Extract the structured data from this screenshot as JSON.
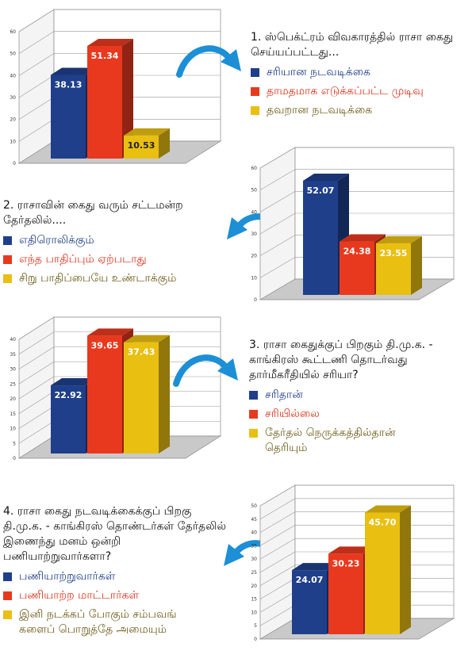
{
  "colors": {
    "blue": "#1f3f8a",
    "red": "#e8391e",
    "yellow": "#e9bf12",
    "blue_text": "#1c3c86",
    "red_text": "#d9321a",
    "yellow_text": "#6b5a17",
    "arrow": "#1c8fd6"
  },
  "questions": [
    {
      "title": "1. ஸ்பெக்ட்ரம் விவகாரத்தில் ராசா கைது செய்யப்பட்டது...",
      "options": [
        "சரியான நடவடிக்கை",
        "தாமதமாக எடுக்கப்பட்ட முடிவு",
        "தவறான நடவடிக்கை"
      ]
    },
    {
      "title": "2. ராசாவின் கைது வரும் சட்டமன்ற தேர்தலில்....",
      "options": [
        "எதிரொலிக்கும்",
        "எந்த பாதிப்பும் ஏற்படாது",
        "சிறு பாதிப்பையே உண்டாக்கும்"
      ]
    },
    {
      "title": "3. ராசா கைதுக்குப் பிறகும் தி.மு.க. - காங்கிரஸ் கூட்டணி தொடர்வது தார்மீகரீதியில் சரியா?",
      "options": [
        "சரிதான்",
        "சரியில்லை",
        "தேர்தல் நெருக்கத்தில்தான் தெரியும்"
      ]
    },
    {
      "title": "4. ராசா கைது நடவடிக்கைக்குப் பிறகு தி.மு.க. - காங்கிரஸ் தொண்டர்கள் தேர்தலில் இணைந்து மனம் ஒன்றி பணியாற்றுவார்களா?",
      "options": [
        "பணியாற்றுவார்கள்",
        "பணியாற்ற மாட்டார்கள்",
        "இனி நடக்கப் போகும் சம்பவங் களைப் பொறுத்தே அமையும்"
      ]
    }
  ],
  "chart_data": [
    {
      "type": "bar",
      "ylim": [
        0,
        60
      ],
      "yticks": [
        "0",
        "10",
        "20",
        "30",
        "40",
        "50",
        "60"
      ],
      "values": [
        38.13,
        51.34,
        10.53
      ],
      "labels": [
        "38.13",
        "51.34",
        "10.53"
      ]
    },
    {
      "type": "bar",
      "ylim": [
        0,
        60
      ],
      "yticks": [
        "0",
        "10",
        "20",
        "30",
        "40",
        "50",
        "60"
      ],
      "values": [
        52.07,
        24.38,
        23.55
      ],
      "labels": [
        "52.07",
        "24.38",
        "23.55"
      ]
    },
    {
      "type": "bar",
      "ylim": [
        0,
        40
      ],
      "yticks": [
        "0",
        "5",
        "10",
        "15",
        "20",
        "25",
        "30",
        "35",
        "40"
      ],
      "values": [
        22.92,
        39.65,
        37.43
      ],
      "labels": [
        "22.92",
        "39.65",
        "37.43"
      ]
    },
    {
      "type": "bar",
      "ylim": [
        0,
        50
      ],
      "yticks": [
        "0",
        "5",
        "10",
        "15",
        "20",
        "25",
        "30",
        "35",
        "40",
        "45",
        "50"
      ],
      "values": [
        24.07,
        30.23,
        45.7
      ],
      "labels": [
        "24.07",
        "30.23",
        "45.70"
      ]
    }
  ]
}
